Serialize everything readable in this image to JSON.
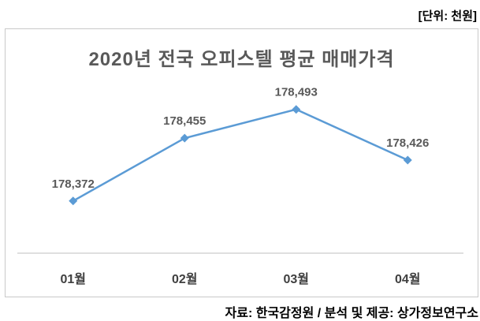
{
  "page": {
    "unit_label": "[단위: 천원]",
    "source_label": "자료: 한국감정원 / 분석 및 제공: 상가정보연구소"
  },
  "chart_data": {
    "type": "line",
    "title": "2020년 전국 오피스텔 평균 매매가격",
    "categories": [
      "01월",
      "02월",
      "03월",
      "04월"
    ],
    "values": [
      178372,
      178455,
      178493,
      178426
    ],
    "value_labels": [
      "178,372",
      "178,455",
      "178,493",
      "178,426"
    ],
    "xlabel": "",
    "ylabel": "",
    "unit": "천원",
    "ylim": [
      178303,
      178500
    ],
    "grid": false,
    "legend": "none",
    "marker": "diamond",
    "colors": {
      "line": "#5B9BD5",
      "marker": "#5B9BD5",
      "title": "#595959",
      "data_label": "#595959",
      "category_label": "#404040",
      "axis_line": "#BFBFBF",
      "border": "#C9C9C9",
      "text": "#000000"
    }
  }
}
